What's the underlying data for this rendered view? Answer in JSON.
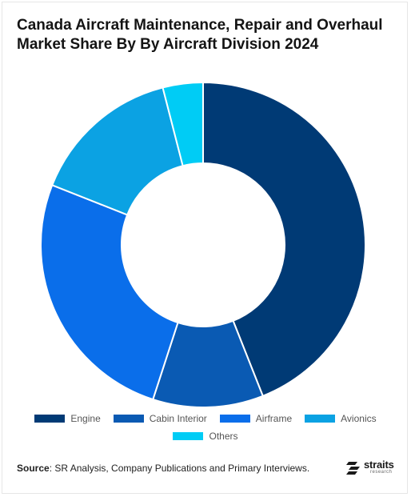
{
  "title": "Canada Aircraft Maintenance, Repair and Overhaul Market Share By By Aircraft Division 2024",
  "chart_data": {
    "type": "pie",
    "donut": true,
    "categories": [
      "Engine",
      "Cabin Interior",
      "Airframe",
      "Avionics",
      "Others"
    ],
    "values": [
      44,
      11,
      26,
      15,
      4
    ],
    "colors": [
      "#003a75",
      "#0a5ab3",
      "#0a6eea",
      "#0ba2e3",
      "#00ccf5"
    ],
    "legend_position": "bottom"
  },
  "source": {
    "label": "Source",
    "text": ": SR Analysis, Company Publications and Primary Interviews."
  },
  "logo": {
    "name": "straits",
    "sub": "research",
    "icon": "straits-logo-icon"
  }
}
